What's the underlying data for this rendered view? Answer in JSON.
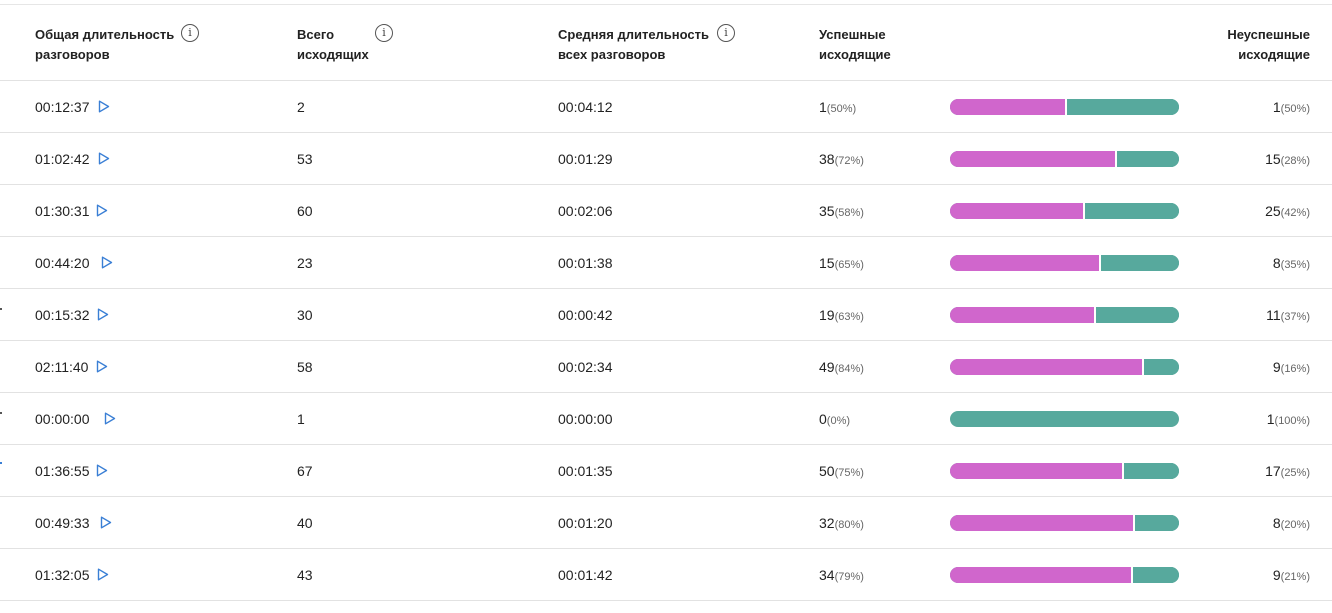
{
  "header": {
    "total_duration_line1": "Общая длительность",
    "total_duration_line2": "разговоров",
    "total_outgoing_line1": "Всего",
    "total_outgoing_line2": "исходящих",
    "avg_duration_line1": "Средняя длительность",
    "avg_duration_line2": "всех разговоров",
    "successful_line1": "Успешные",
    "successful_line2": "исходящие",
    "unsuccessful_line1": "Неуспешные",
    "unsuccessful_line2": "исходящие",
    "info_glyph": "i"
  },
  "colors": {
    "success": "#d066cc",
    "fail": "#57a99d",
    "play": "#3a7fd5"
  },
  "rows": [
    {
      "total_duration": "00:12:37",
      "total_outgoing": "2",
      "avg_duration": "00:04:12",
      "success": "1",
      "success_pct": "(50%)",
      "fail": "1",
      "fail_pct": "(50%)",
      "share": 0.5
    },
    {
      "total_duration": "01:02:42",
      "total_outgoing": "53",
      "avg_duration": "00:01:29",
      "success": "38",
      "success_pct": "(72%)",
      "fail": "15",
      "fail_pct": "(28%)",
      "share": 0.72
    },
    {
      "total_duration": "01:30:31",
      "total_outgoing": "60",
      "avg_duration": "00:02:06",
      "success": "35",
      "success_pct": "(58%)",
      "fail": "25",
      "fail_pct": "(42%)",
      "share": 0.58
    },
    {
      "total_duration": "00:44:20",
      "total_outgoing": "23",
      "avg_duration": "00:01:38",
      "success": "15",
      "success_pct": "(65%)",
      "fail": "8",
      "fail_pct": "(35%)",
      "share": 0.65
    },
    {
      "total_duration": "00:15:32",
      "total_outgoing": "30",
      "avg_duration": "00:00:42",
      "success": "19",
      "success_pct": "(63%)",
      "fail": "11",
      "fail_pct": "(37%)",
      "share": 0.63
    },
    {
      "total_duration": "02:11:40",
      "total_outgoing": "58",
      "avg_duration": "00:02:34",
      "success": "49",
      "success_pct": "(84%)",
      "fail": "9",
      "fail_pct": "(16%)",
      "share": 0.84
    },
    {
      "total_duration": "00:00:00",
      "total_outgoing": "1",
      "avg_duration": "00:00:00",
      "success": "0",
      "success_pct": "(0%)",
      "fail": "1",
      "fail_pct": "(100%)",
      "share": 0.0
    },
    {
      "total_duration": "01:36:55",
      "total_outgoing": "67",
      "avg_duration": "00:01:35",
      "success": "50",
      "success_pct": "(75%)",
      "fail": "17",
      "fail_pct": "(25%)",
      "share": 0.75
    },
    {
      "total_duration": "00:49:33",
      "total_outgoing": "40",
      "avg_duration": "00:01:20",
      "success": "32",
      "success_pct": "(80%)",
      "fail": "8",
      "fail_pct": "(20%)",
      "share": 0.8
    },
    {
      "total_duration": "01:32:05",
      "total_outgoing": "43",
      "avg_duration": "00:01:42",
      "success": "34",
      "success_pct": "(79%)",
      "fail": "9",
      "fail_pct": "(21%)",
      "share": 0.79
    }
  ]
}
